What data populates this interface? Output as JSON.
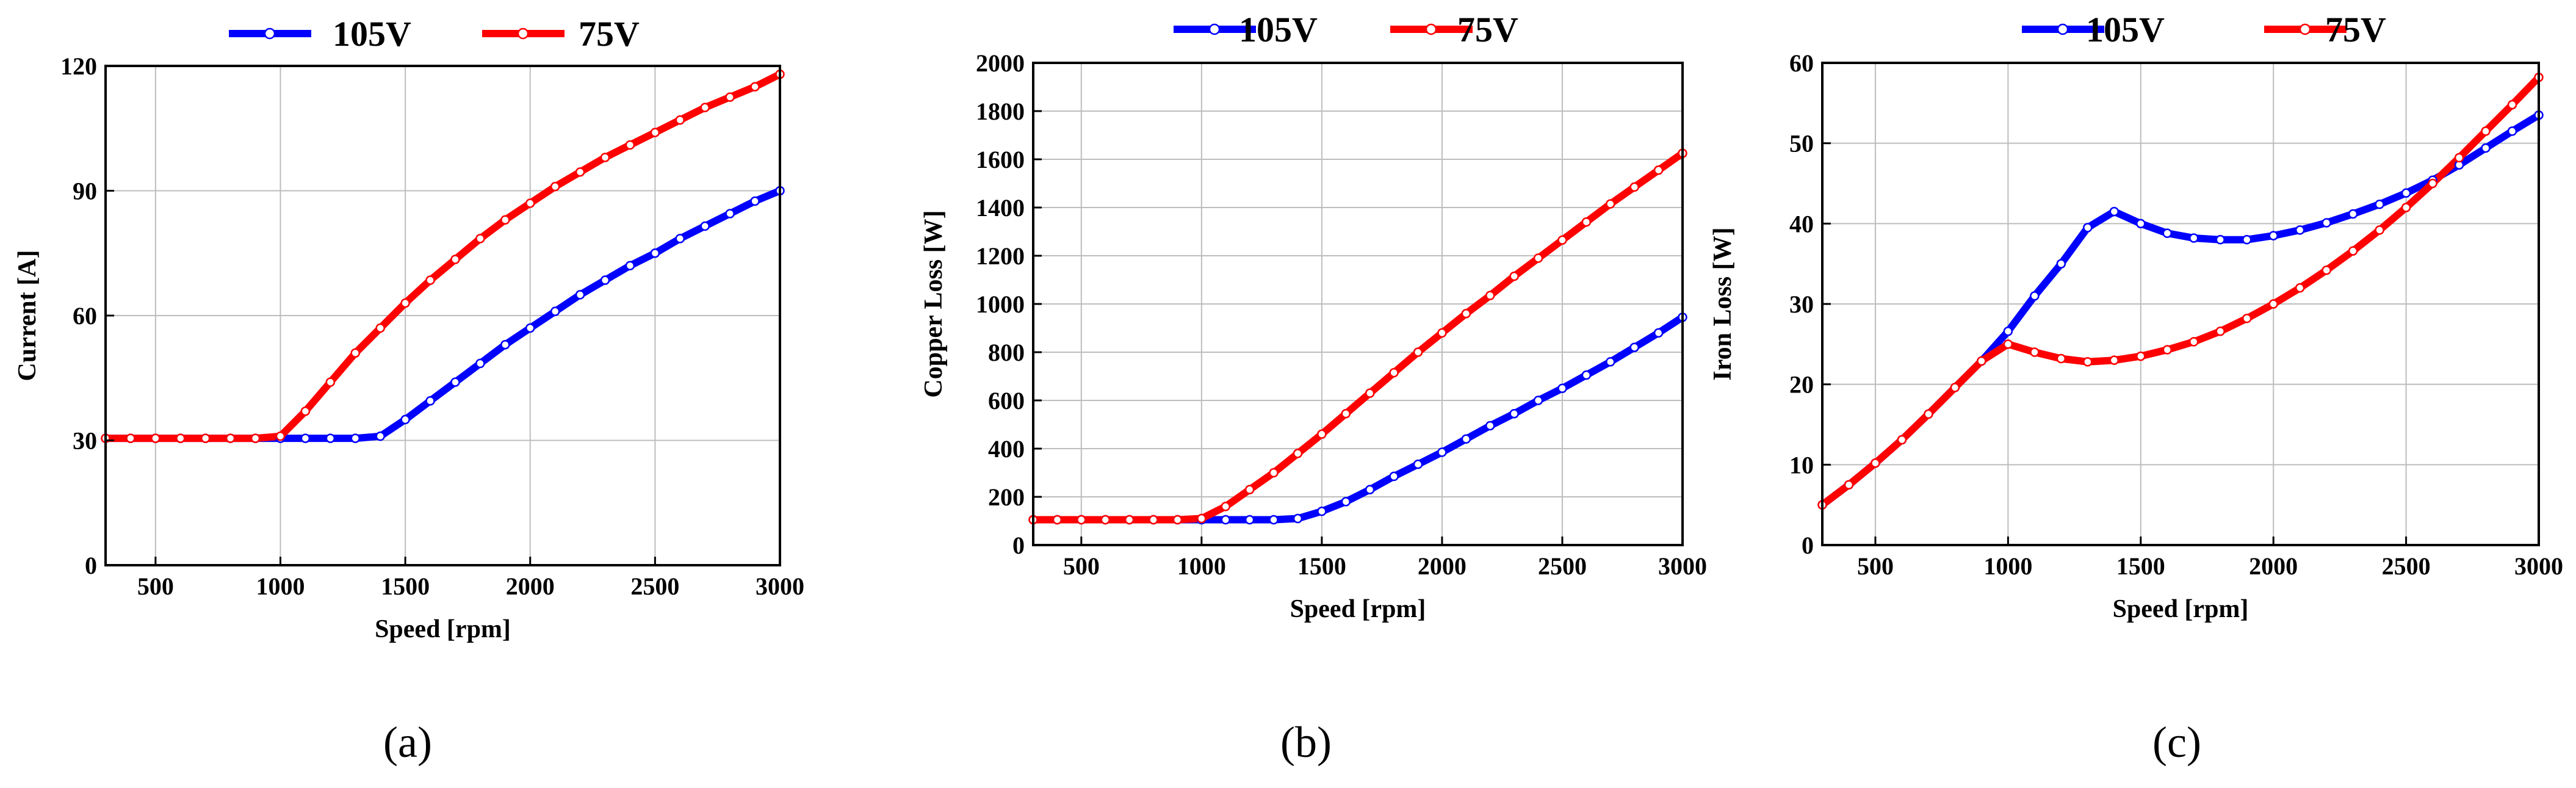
{
  "legend": {
    "s105": {
      "label": "105V",
      "color": "#0000FF"
    },
    "s75": {
      "label": "75V",
      "color": "#FF0000"
    }
  },
  "chart_data": [
    {
      "type": "line",
      "caption": "(a)",
      "xlabel": "Speed [rpm]",
      "ylabel": "Current [A]",
      "xlim": [
        300,
        3000
      ],
      "ylim": [
        0,
        120
      ],
      "xticks": [
        500,
        1000,
        1500,
        2000,
        2500,
        3000
      ],
      "yticks": [
        0,
        30,
        60,
        90,
        120
      ],
      "grid": true,
      "legend_position": "top-center",
      "x": [
        300,
        400,
        500,
        600,
        700,
        800,
        900,
        1000,
        1100,
        1200,
        1300,
        1400,
        1500,
        1600,
        1700,
        1800,
        1900,
        2000,
        2100,
        2200,
        2300,
        2400,
        2500,
        2600,
        2700,
        2800,
        2900,
        3000
      ],
      "series": [
        {
          "name": "105V",
          "color": "#0000FF",
          "values": [
            30.5,
            30.5,
            30.5,
            30.5,
            30.5,
            30.5,
            30.5,
            30.5,
            30.5,
            30.5,
            30.5,
            31,
            35,
            39.5,
            44,
            48.5,
            53,
            57,
            61,
            65,
            68.5,
            72,
            75,
            78.5,
            81.5,
            84.5,
            87.5,
            90
          ]
        },
        {
          "name": "75V",
          "color": "#FF0000",
          "values": [
            30.5,
            30.5,
            30.5,
            30.5,
            30.5,
            30.5,
            30.5,
            31,
            37,
            44,
            51,
            57,
            63,
            68.5,
            73.5,
            78.5,
            83,
            87,
            91,
            94.5,
            98,
            101,
            104,
            107,
            110,
            112.5,
            115,
            118
          ]
        }
      ]
    },
    {
      "type": "line",
      "caption": "(b)",
      "xlabel": "Speed [rpm]",
      "ylabel": "Copper Loss [W]",
      "xlim": [
        300,
        3000
      ],
      "ylim": [
        0,
        2000
      ],
      "xticks": [
        500,
        1000,
        1500,
        2000,
        2500,
        3000
      ],
      "yticks": [
        0,
        200,
        400,
        600,
        800,
        1000,
        1200,
        1400,
        1600,
        1800,
        2000
      ],
      "grid": true,
      "legend_position": "top-center",
      "x": [
        300,
        400,
        500,
        600,
        700,
        800,
        900,
        1000,
        1100,
        1200,
        1300,
        1400,
        1500,
        1600,
        1700,
        1800,
        1900,
        2000,
        2100,
        2200,
        2300,
        2400,
        2500,
        2600,
        2700,
        2800,
        2900,
        3000
      ],
      "series": [
        {
          "name": "105V",
          "color": "#0000FF",
          "values": [
            105,
            105,
            105,
            105,
            105,
            105,
            105,
            105,
            105,
            105,
            105,
            110,
            140,
            180,
            230,
            285,
            335,
            385,
            440,
            495,
            545,
            600,
            650,
            705,
            760,
            820,
            880,
            945
          ]
        },
        {
          "name": "75V",
          "color": "#FF0000",
          "values": [
            105,
            105,
            105,
            105,
            105,
            105,
            105,
            110,
            160,
            230,
            300,
            380,
            460,
            545,
            630,
            715,
            800,
            880,
            960,
            1035,
            1115,
            1190,
            1265,
            1340,
            1415,
            1485,
            1555,
            1625
          ]
        }
      ]
    },
    {
      "type": "line",
      "caption": "(c)",
      "xlabel": "Speed [rpm]",
      "ylabel": "Iron Loss [W]",
      "xlim": [
        300,
        3000
      ],
      "ylim": [
        0,
        60
      ],
      "xticks": [
        500,
        1000,
        1500,
        2000,
        2500,
        3000
      ],
      "yticks": [
        0,
        10,
        20,
        30,
        40,
        50,
        60
      ],
      "grid": true,
      "legend_position": "top-center",
      "x": [
        300,
        400,
        500,
        600,
        700,
        800,
        900,
        1000,
        1100,
        1200,
        1300,
        1400,
        1500,
        1600,
        1700,
        1800,
        1900,
        2000,
        2100,
        2200,
        2300,
        2400,
        2500,
        2600,
        2700,
        2800,
        2900,
        3000
      ],
      "series": [
        {
          "name": "105V",
          "color": "#0000FF",
          "values": [
            5,
            7.5,
            10.2,
            13.1,
            16.3,
            19.6,
            22.9,
            26.6,
            31,
            35,
            39.5,
            41.5,
            40,
            38.8,
            38.2,
            38,
            38,
            38.5,
            39.2,
            40.1,
            41.2,
            42.4,
            43.8,
            45.4,
            47.3,
            49.4,
            51.5,
            53.5
          ]
        },
        {
          "name": "75V",
          "color": "#FF0000",
          "values": [
            5,
            7.5,
            10.2,
            13.1,
            16.3,
            19.6,
            22.9,
            25,
            24,
            23.2,
            22.8,
            23,
            23.5,
            24.3,
            25.3,
            26.6,
            28.2,
            30,
            32,
            34.2,
            36.6,
            39.2,
            42,
            45,
            48.2,
            51.5,
            54.8,
            58.2
          ]
        }
      ]
    }
  ]
}
